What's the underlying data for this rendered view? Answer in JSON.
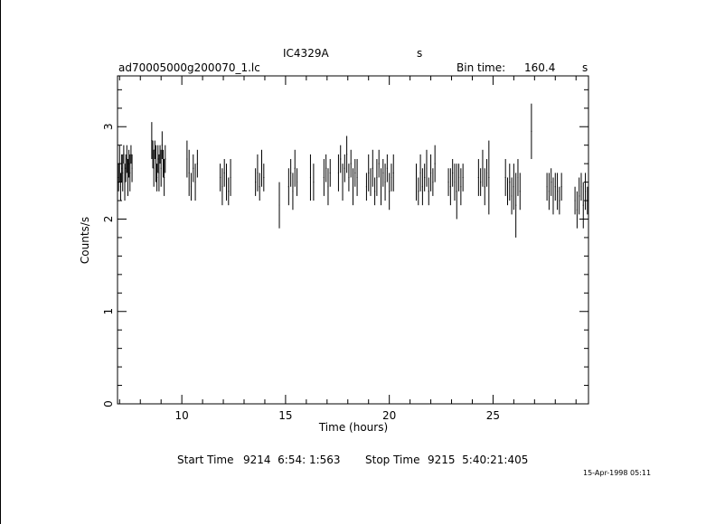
{
  "header": {
    "object": "IC4329A",
    "object_unit": "s",
    "file": "ad70005000g200070_1.lc",
    "bin_label": "Bin time:",
    "bin_value": "160.4",
    "bin_unit": "s"
  },
  "footer": {
    "start_label": "Start Time",
    "start_value": "9214  6:54: 1:563",
    "stop_label": "Stop Time",
    "stop_value": "9215  5:40:21:405",
    "stamp": "15-Apr-1998 05:11"
  },
  "chart_data": {
    "type": "scatter",
    "title": "IC4329A",
    "xlabel": "Time (hours)",
    "ylabel": "Counts/s",
    "xlim": [
      6.9,
      29.6
    ],
    "ylim": [
      0,
      3.55
    ],
    "x_ticks": [
      10,
      15,
      20,
      25
    ],
    "y_ticks": [
      0,
      1,
      2,
      3
    ],
    "grid": false,
    "segments": [
      {
        "x": [
          6.95,
          7.0,
          7.05,
          7.1,
          7.15,
          7.2,
          7.25,
          7.3,
          7.35,
          7.4,
          7.45,
          7.5,
          7.55,
          7.6
        ],
        "y": [
          2.45,
          2.6,
          2.35,
          2.55,
          2.5,
          2.7,
          2.4,
          2.55,
          2.65,
          2.45,
          2.6,
          2.5,
          2.7,
          2.55
        ],
        "err": [
          0.15,
          0.2,
          0.15,
          0.15,
          0.2,
          0.1,
          0.2,
          0.15,
          0.15,
          0.2,
          0.15,
          0.2,
          0.1,
          0.15
        ]
      },
      {
        "x": [
          8.55,
          8.6,
          8.65,
          8.7,
          8.75,
          8.8,
          8.85,
          8.9,
          8.95,
          9.0,
          9.05,
          9.1,
          9.15,
          9.2
        ],
        "y": [
          2.85,
          2.7,
          2.55,
          2.75,
          2.6,
          2.45,
          2.65,
          2.5,
          2.7,
          2.55,
          2.8,
          2.6,
          2.45,
          2.65
        ],
        "err": [
          0.2,
          0.15,
          0.2,
          0.1,
          0.2,
          0.15,
          0.15,
          0.2,
          0.1,
          0.2,
          0.15,
          0.15,
          0.2,
          0.15
        ]
      },
      {
        "x": [
          10.25,
          10.35,
          10.45,
          10.55,
          10.65,
          10.75
        ],
        "y": [
          2.65,
          2.5,
          2.35,
          2.55,
          2.4,
          2.6
        ],
        "err": [
          0.2,
          0.25,
          0.15,
          0.15,
          0.2,
          0.15
        ]
      },
      {
        "x": [
          11.85,
          11.95,
          12.05,
          12.15,
          12.25,
          12.35
        ],
        "y": [
          2.45,
          2.35,
          2.5,
          2.4,
          2.3,
          2.45
        ],
        "err": [
          0.15,
          0.2,
          0.15,
          0.2,
          0.15,
          0.2
        ]
      },
      {
        "x": [
          13.55,
          13.65,
          13.75,
          13.85,
          13.95
        ],
        "y": [
          2.4,
          2.5,
          2.35,
          2.55,
          2.45
        ],
        "err": [
          0.15,
          0.2,
          0.15,
          0.2,
          0.15
        ]
      },
      {
        "x": [
          14.7
        ],
        "y": [
          2.15
        ],
        "err": [
          0.25
        ]
      },
      {
        "x": [
          15.15,
          15.25,
          15.35,
          15.45,
          15.55
        ],
        "y": [
          2.35,
          2.5,
          2.3,
          2.55,
          2.4
        ],
        "err": [
          0.2,
          0.15,
          0.2,
          0.2,
          0.15
        ]
      },
      {
        "x": [
          16.2,
          16.35
        ],
        "y": [
          2.45,
          2.4
        ],
        "err": [
          0.25,
          0.2
        ]
      },
      {
        "x": [
          16.85,
          16.95,
          17.05,
          17.15
        ],
        "y": [
          2.45,
          2.55,
          2.35,
          2.5
        ],
        "err": [
          0.2,
          0.15,
          0.2,
          0.15
        ]
      },
      {
        "x": [
          17.55,
          17.65,
          17.75,
          17.85,
          17.95,
          18.05,
          18.15,
          18.25,
          18.35,
          18.45
        ],
        "y": [
          2.5,
          2.65,
          2.4,
          2.55,
          2.7,
          2.45,
          2.6,
          2.35,
          2.5,
          2.45
        ],
        "err": [
          0.2,
          0.15,
          0.2,
          0.15,
          0.2,
          0.15,
          0.15,
          0.2,
          0.15,
          0.2
        ]
      },
      {
        "x": [
          18.9,
          19.0,
          19.1,
          19.2,
          19.3,
          19.4,
          19.5,
          19.6,
          19.7,
          19.8,
          19.9,
          20.0,
          20.1,
          20.2
        ],
        "y": [
          2.35,
          2.5,
          2.4,
          2.55,
          2.3,
          2.45,
          2.6,
          2.35,
          2.5,
          2.4,
          2.55,
          2.3,
          2.45,
          2.5
        ],
        "err": [
          0.15,
          0.2,
          0.15,
          0.2,
          0.15,
          0.2,
          0.15,
          0.2,
          0.15,
          0.2,
          0.15,
          0.2,
          0.15,
          0.2
        ]
      },
      {
        "x": [
          21.3,
          21.4,
          21.5,
          21.6,
          21.7,
          21.8,
          21.9,
          22.0,
          22.1,
          22.2
        ],
        "y": [
          2.4,
          2.3,
          2.5,
          2.35,
          2.45,
          2.55,
          2.3,
          2.5,
          2.4,
          2.6
        ],
        "err": [
          0.2,
          0.15,
          0.2,
          0.2,
          0.15,
          0.2,
          0.15,
          0.2,
          0.15,
          0.2
        ]
      },
      {
        "x": [
          22.85,
          22.95,
          23.05,
          23.15,
          23.25,
          23.35,
          23.45,
          23.55
        ],
        "y": [
          2.4,
          2.35,
          2.5,
          2.4,
          2.3,
          2.45,
          2.35,
          2.45
        ],
        "err": [
          0.15,
          0.2,
          0.15,
          0.2,
          0.3,
          0.15,
          0.2,
          0.15
        ]
      },
      {
        "x": [
          24.3,
          24.4,
          24.5,
          24.6,
          24.7,
          24.8
        ],
        "y": [
          2.45,
          2.4,
          2.55,
          2.35,
          2.5,
          2.45
        ],
        "err": [
          0.2,
          0.15,
          0.2,
          0.2,
          0.15,
          0.4
        ]
      },
      {
        "x": [
          25.6,
          25.7,
          25.8,
          25.9,
          26.0,
          26.1,
          26.2,
          26.3
        ],
        "y": [
          2.45,
          2.3,
          2.4,
          2.25,
          2.35,
          2.15,
          2.45,
          2.3
        ],
        "err": [
          0.2,
          0.15,
          0.2,
          0.2,
          0.25,
          0.35,
          0.2,
          0.2
        ]
      },
      {
        "x": [
          26.85
        ],
        "y": [
          2.95
        ],
        "err": [
          0.3
        ]
      },
      {
        "x": [
          27.6,
          27.7,
          27.8,
          27.9,
          28.0,
          28.1,
          28.2,
          28.3
        ],
        "y": [
          2.35,
          2.3,
          2.4,
          2.25,
          2.35,
          2.3,
          2.2,
          2.35
        ],
        "err": [
          0.15,
          0.2,
          0.15,
          0.2,
          0.15,
          0.2,
          0.15,
          0.15
        ]
      },
      {
        "x": [
          28.95,
          29.05,
          29.15,
          29.25,
          29.35,
          29.45,
          29.55
        ],
        "y": [
          2.2,
          2.1,
          2.25,
          2.35,
          2.15,
          2.3,
          2.2
        ],
        "err": [
          0.15,
          0.2,
          0.2,
          0.15,
          0.25,
          0.2,
          0.15
        ]
      }
    ]
  }
}
